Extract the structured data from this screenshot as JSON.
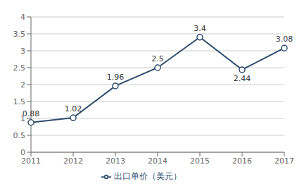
{
  "chart_data": {
    "type": "line",
    "categories": [
      "2011",
      "2012",
      "2013",
      "2014",
      "2015",
      "2016",
      "2017"
    ],
    "series": [
      {
        "name": "出口单价（美元）",
        "color": "#2d4d6e",
        "marker": "circle",
        "values": [
          0.88,
          1.02,
          1.96,
          2.5,
          3.4,
          2.44,
          3.08
        ]
      }
    ],
    "ylim": [
      0,
      4
    ],
    "yticks": [
      0,
      0.5,
      1,
      1.5,
      2,
      2.5,
      3,
      3.5,
      4
    ],
    "grid": true,
    "legend": "bottom",
    "data_labels": true
  }
}
